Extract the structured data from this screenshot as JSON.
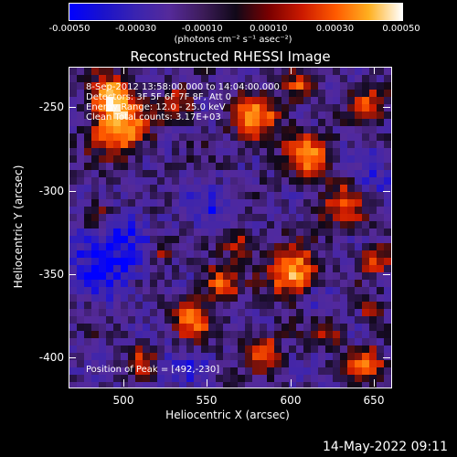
{
  "colorbar": {
    "ticks": [
      "-0.00050",
      "-0.00030",
      "-0.00010",
      "0.00010",
      "0.00030",
      "0.00050"
    ],
    "unit_label": "(photons cm⁻² s⁻¹ asec⁻²)"
  },
  "title": "Reconstructed RHESSI Image",
  "annotations": {
    "time": "8-Sep-2012 13:58:00.000 to 14:04:00.000",
    "detectors": "Detectors: 3F 5F 6F 7F 8F, Att 0",
    "energy": "Energy Range: 12.0 - 25.0 keV",
    "clean": "Clean    Total counts: 3.17E+03",
    "peak": "Position of Peak = [492,-230]"
  },
  "axes": {
    "xlabel": "Heliocentric X (arcsec)",
    "ylabel": "Heliocentric Y (arcsec)",
    "xticks": [
      "500",
      "550",
      "600",
      "650"
    ],
    "yticks": [
      "-250",
      "-300",
      "-350",
      "-400"
    ]
  },
  "timestamp": "14-May-2022 09:11",
  "chart_data": {
    "type": "heatmap",
    "title": "Reconstructed RHESSI Image",
    "xlabel": "Heliocentric X (arcsec)",
    "ylabel": "Heliocentric Y (arcsec)",
    "xlim": [
      467,
      660
    ],
    "ylim": [
      -418,
      -226
    ],
    "colorbar_range": [
      -0.0005,
      0.0005
    ],
    "colorscale": [
      "#0000ff",
      "#3a24b0",
      "#552a9a",
      "#100818",
      "#cc1a00",
      "#ff5a00",
      "#ffb020",
      "#ffffff"
    ],
    "peak": [
      492,
      -230
    ]
  }
}
